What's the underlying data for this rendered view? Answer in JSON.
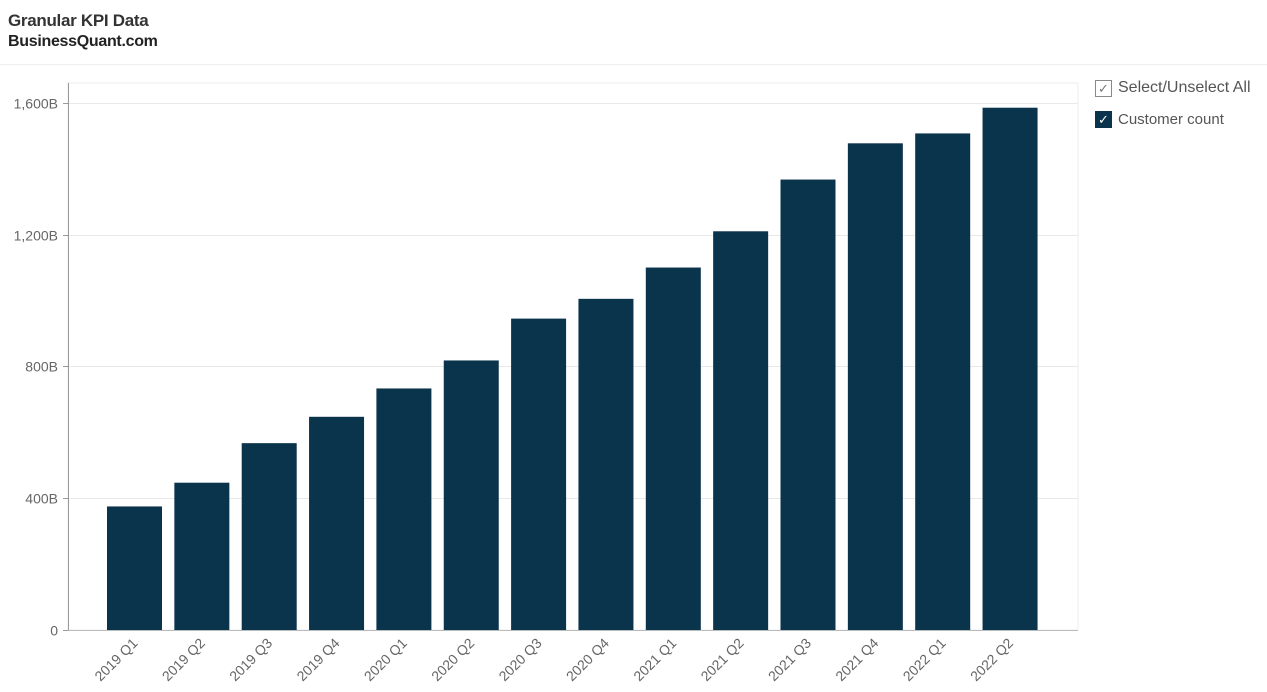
{
  "header": {
    "title": "Granular KPI Data",
    "subtitle": "BusinessQuant.com"
  },
  "legend": {
    "select_all_label": "Select/Unselect All",
    "check_glyph": "✓",
    "series_label": "Customer count"
  },
  "colors": {
    "bar": "#0a334c",
    "grid": "#e8e8e8",
    "axis_text": "#666666"
  },
  "chart_data": {
    "type": "bar",
    "categories": [
      "2019 Q1",
      "2019 Q2",
      "2019 Q3",
      "2019 Q4",
      "2020 Q1",
      "2020 Q2",
      "2020 Q3",
      "2020 Q4",
      "2021 Q1",
      "2021 Q2",
      "2021 Q3",
      "2021 Q4",
      "2022 Q1",
      "2022 Q2"
    ],
    "series": [
      {
        "name": "Customer count",
        "values": [
          375,
          447,
          567,
          647,
          733,
          818,
          945,
          1005,
          1100,
          1210,
          1367,
          1477,
          1507,
          1585
        ]
      }
    ],
    "value_unit": "B",
    "ylim": [
      0,
      1660
    ],
    "yticks": [
      0,
      400,
      800,
      1200,
      1600
    ],
    "ytick_labels": [
      "0",
      "400B",
      "800B",
      "1,200B",
      "1,600B"
    ],
    "grid": true,
    "legend_position": "right"
  }
}
